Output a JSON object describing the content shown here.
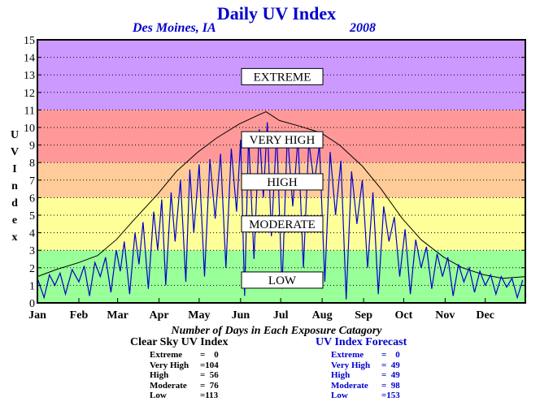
{
  "title": "Daily UV Index",
  "subtitle_location": "Des Moines, IA",
  "subtitle_year": "2008",
  "caption": "Number of Days in Each Exposure Catagory",
  "chart_data": {
    "type": "line",
    "ylabel": "UV Index",
    "ylim": [
      0,
      15
    ],
    "yticks": [
      "0",
      "1",
      "2",
      "3",
      "4",
      "5",
      "6",
      "7",
      "8",
      "9",
      "10",
      "11",
      "12",
      "13",
      "14",
      "15"
    ],
    "months": [
      "Jan",
      "Feb",
      "Mar",
      "Apr",
      "May",
      "Jun",
      "Jul",
      "Aug",
      "Sep",
      "Oct",
      "Nov",
      "Dec"
    ],
    "grid": true,
    "bands": [
      {
        "label": "LOW",
        "from": 0,
        "to": 3,
        "color": "#99ff99",
        "label_y": 1.3
      },
      {
        "label": "MODERATE",
        "from": 3,
        "to": 6,
        "color": "#ffff99",
        "label_y": 4.5
      },
      {
        "label": "HIGH",
        "from": 6,
        "to": 8,
        "color": "#ffcc99",
        "label_y": 6.9
      },
      {
        "label": "VERY HIGH",
        "from": 8,
        "to": 11,
        "color": "#ff9999",
        "label_y": 9.3
      },
      {
        "label": "EXTREME",
        "from": 11,
        "to": 15,
        "color": "#cc99ff",
        "label_y": 12.9
      }
    ],
    "series": [
      {
        "name": "Clear Sky UV Index",
        "color": "#000000",
        "doy": [
          1,
          15,
          32,
          46,
          60,
          74,
          91,
          105,
          121,
          135,
          152,
          166,
          172,
          182,
          196,
          213,
          227,
          244,
          258,
          274,
          288,
          305,
          319,
          335,
          349,
          366
        ],
        "values": [
          1.5,
          1.9,
          2.3,
          2.7,
          3.6,
          4.8,
          6.2,
          7.5,
          8.6,
          9.4,
          10.2,
          10.7,
          10.9,
          10.4,
          10.1,
          9.7,
          9.0,
          7.8,
          6.5,
          4.8,
          3.6,
          2.6,
          2.0,
          1.6,
          1.4,
          1.5
        ]
      },
      {
        "name": "UV Index Forecast",
        "color": "#0000cc",
        "doy": [
          1,
          6,
          10,
          14,
          18,
          22,
          27,
          32,
          36,
          40,
          44,
          48,
          52,
          56,
          60,
          63,
          66,
          70,
          74,
          77,
          80,
          84,
          88,
          91,
          94,
          97,
          101,
          104,
          108,
          112,
          115,
          118,
          122,
          126,
          130,
          134,
          138,
          142,
          146,
          150,
          153,
          156,
          159,
          163,
          167,
          170,
          173,
          176,
          180,
          184,
          188,
          192,
          196,
          200,
          204,
          208,
          212,
          216,
          220,
          224,
          228,
          232,
          236,
          240,
          244,
          248,
          252,
          256,
          260,
          264,
          268,
          272,
          276,
          280,
          284,
          288,
          292,
          296,
          300,
          304,
          308,
          312,
          316,
          320,
          324,
          328,
          332,
          336,
          340,
          344,
          348,
          352,
          356,
          360,
          364
        ],
        "values": [
          1.4,
          0.3,
          1.6,
          1.0,
          1.7,
          0.5,
          1.9,
          1.2,
          2.1,
          0.4,
          2.3,
          1.5,
          2.6,
          0.6,
          3.0,
          1.8,
          3.5,
          0.5,
          4.0,
          2.2,
          4.6,
          0.8,
          5.2,
          3.0,
          5.9,
          1.0,
          6.3,
          3.5,
          7.0,
          1.2,
          7.6,
          4.0,
          7.9,
          1.5,
          8.2,
          4.8,
          8.5,
          2.0,
          8.8,
          5.2,
          9.3,
          0.4,
          9.6,
          2.5,
          9.9,
          6.0,
          10.3,
          3.8,
          9.8,
          0.8,
          9.7,
          5.5,
          9.4,
          2.0,
          9.2,
          6.8,
          9.0,
          1.2,
          8.6,
          5.0,
          8.1,
          0.2,
          7.5,
          4.5,
          7.0,
          2.0,
          6.3,
          0.5,
          5.5,
          3.5,
          4.9,
          1.5,
          4.2,
          0.5,
          3.6,
          2.0,
          3.2,
          0.8,
          2.8,
          1.5,
          2.6,
          0.4,
          2.2,
          1.2,
          2.0,
          0.6,
          1.8,
          1.0,
          1.6,
          0.5,
          1.5,
          0.9,
          1.4,
          0.3,
          1.3
        ]
      }
    ]
  },
  "stats": {
    "clear": {
      "title": "Clear Sky UV Index",
      "rows": [
        {
          "label": "Extreme",
          "value": "=    0"
        },
        {
          "label": "Very High",
          "value": "=104"
        },
        {
          "label": "High",
          "value": "=  56"
        },
        {
          "label": "Moderate",
          "value": "=  76"
        },
        {
          "label": "Low",
          "value": "=113"
        }
      ]
    },
    "forecast": {
      "title": "UV Index Forecast",
      "rows": [
        {
          "label": "Extreme",
          "value": "=    0"
        },
        {
          "label": "Very High",
          "value": "=  49"
        },
        {
          "label": "High",
          "value": "=  49"
        },
        {
          "label": "Moderate",
          "value": "=  98"
        },
        {
          "label": "Low",
          "value": "=153"
        }
      ]
    }
  }
}
